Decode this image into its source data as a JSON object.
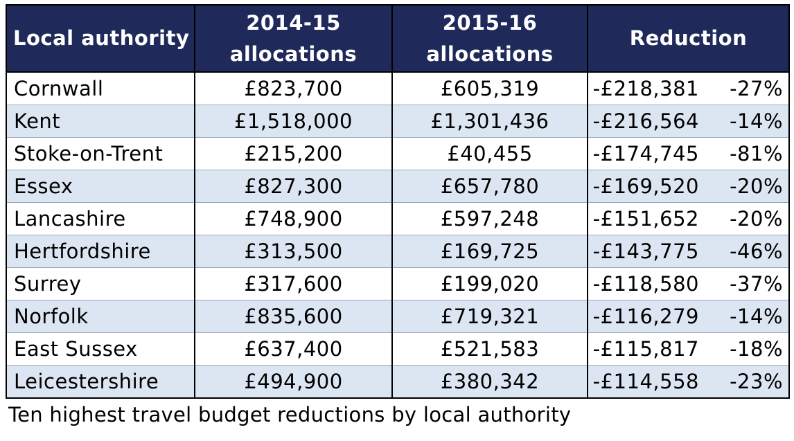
{
  "table": {
    "headers": {
      "authority": "Local authority",
      "y1415_line1": "2014-15",
      "y1415_line2": "allocations",
      "y1516_line1": "2015-16",
      "y1516_line2": "allocations",
      "reduction": "Reduction"
    },
    "rows": [
      {
        "authority": "Cornwall",
        "y1415": "£823,700",
        "y1516": "£605,319",
        "reduction": "-£218,381",
        "percent": "-27%"
      },
      {
        "authority": "Kent",
        "y1415": "£1,518,000",
        "y1516": "£1,301,436",
        "reduction": "-£216,564",
        "percent": "-14%"
      },
      {
        "authority": "Stoke-on-Trent",
        "y1415": "£215,200",
        "y1516": "£40,455",
        "reduction": "-£174,745",
        "percent": "-81%"
      },
      {
        "authority": "Essex",
        "y1415": "£827,300",
        "y1516": "£657,780",
        "reduction": "-£169,520",
        "percent": "-20%"
      },
      {
        "authority": "Lancashire",
        "y1415": "£748,900",
        "y1516": "£597,248",
        "reduction": "-£151,652",
        "percent": "-20%"
      },
      {
        "authority": "Hertfordshire",
        "y1415": "£313,500",
        "y1516": "£169,725",
        "reduction": "-£143,775",
        "percent": "-46%"
      },
      {
        "authority": "Surrey",
        "y1415": "£317,600",
        "y1516": "£199,020",
        "reduction": "-£118,580",
        "percent": "-37%"
      },
      {
        "authority": "Norfolk",
        "y1415": "£835,600",
        "y1516": "£719,321",
        "reduction": "-£116,279",
        "percent": "-14%"
      },
      {
        "authority": "East Sussex",
        "y1415": "£637,400",
        "y1516": "£521,583",
        "reduction": "-£115,817",
        "percent": "-18%"
      },
      {
        "authority": "Leicestershire",
        "y1415": "£494,900",
        "y1516": "£380,342",
        "reduction": "-£114,558",
        "percent": "-23%"
      }
    ]
  },
  "caption": "Ten highest travel budget reductions by local authority",
  "colors": {
    "header_bg": "#1f2a5a",
    "header_text": "#ffffff",
    "alt_row_bg": "#dce6f2"
  }
}
